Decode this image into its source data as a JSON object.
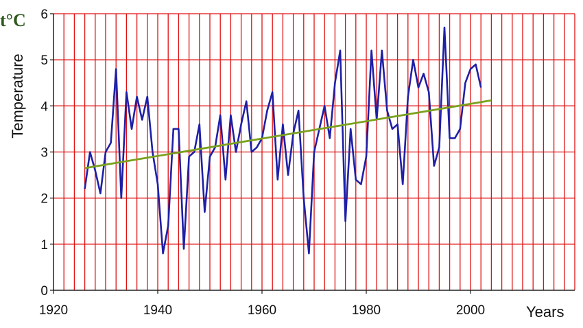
{
  "chart_data": {
    "type": "line",
    "title": "",
    "unit_label": "t°C",
    "ylabel": "Temperature",
    "xlabel": "Years",
    "xlim": [
      1920,
      2020
    ],
    "ylim": [
      0,
      6
    ],
    "x_ticks": [
      1920,
      1940,
      1960,
      1980,
      2000
    ],
    "y_ticks": [
      0,
      1,
      2,
      3,
      4,
      5,
      6
    ],
    "grid": true,
    "legend": "none",
    "colors": {
      "series": "#1f1fa6",
      "trend": "#7aa11e",
      "grid": "#e01010",
      "axis": "#222222"
    },
    "series": [
      {
        "x": [
          1926,
          1927,
          1928,
          1929,
          1930,
          1931,
          1932,
          1933,
          1934,
          1935,
          1936,
          1937,
          1938,
          1939,
          1940,
          1941,
          1942,
          1943,
          1944,
          1945,
          1946,
          1947,
          1948,
          1949,
          1950,
          1951,
          1952,
          1953,
          1954,
          1955,
          1956,
          1957,
          1958,
          1959,
          1960,
          1961,
          1962,
          1963,
          1964,
          1965,
          1966,
          1967,
          1968,
          1969,
          1970,
          1971,
          1972,
          1973,
          1974,
          1975,
          1976,
          1977,
          1978,
          1979,
          1980,
          1981,
          1982,
          1983,
          1984,
          1985,
          1986,
          1987,
          1988,
          1989,
          1990,
          1991,
          1992,
          1993,
          1994,
          1995,
          1996,
          1997,
          1998,
          1999,
          2000,
          2001,
          2002
        ],
        "values": [
          2.2,
          3.0,
          2.6,
          2.1,
          3.0,
          3.2,
          4.8,
          2.0,
          4.3,
          3.5,
          4.2,
          3.7,
          4.2,
          3.0,
          2.3,
          0.8,
          1.4,
          3.5,
          3.5,
          0.9,
          2.9,
          3.0,
          3.6,
          1.7,
          2.9,
          3.1,
          3.8,
          2.4,
          3.8,
          3.0,
          3.6,
          4.1,
          3.0,
          3.1,
          3.3,
          3.9,
          4.3,
          2.4,
          3.6,
          2.5,
          3.4,
          3.9,
          2.0,
          0.8,
          3.0,
          3.5,
          4.0,
          3.3,
          4.5,
          5.2,
          1.5,
          3.5,
          2.4,
          2.3,
          2.9,
          5.2,
          3.7,
          5.2,
          3.9,
          3.5,
          3.6,
          2.3,
          4.2,
          5.0,
          4.4,
          4.7,
          4.3,
          2.7,
          3.1,
          5.7,
          3.3,
          3.3,
          3.5,
          4.5,
          4.8,
          4.9,
          4.4
        ]
      }
    ],
    "trend": {
      "x": [
        1926,
        2004
      ],
      "y": [
        2.65,
        4.12
      ]
    }
  }
}
